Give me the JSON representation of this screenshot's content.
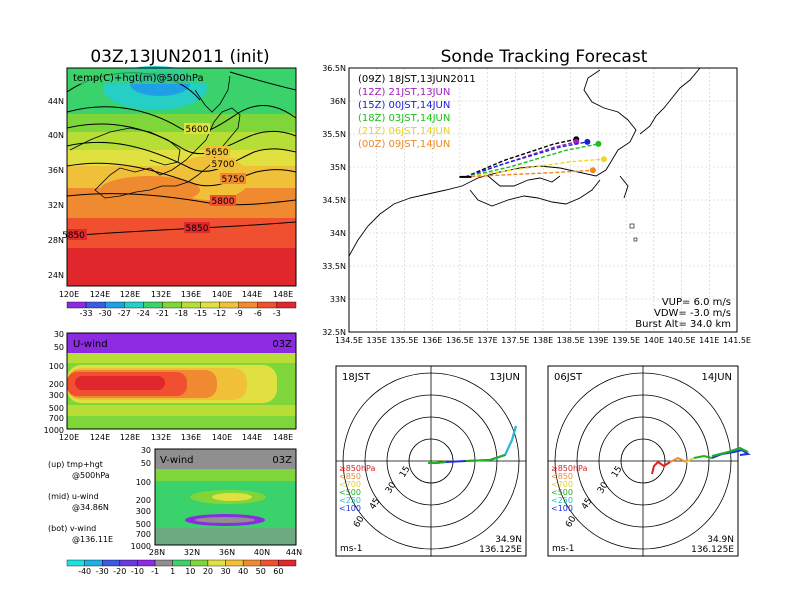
{
  "chart_data": [
    {
      "type": "heatmap",
      "title": "03Z,13JUN2011 (init)",
      "panel_label": "temp(C)+hgt(m)@500hPa",
      "x_ticks": [
        "120E",
        "124E",
        "128E",
        "132E",
        "136E",
        "140E",
        "144E",
        "148E"
      ],
      "y_ticks": [
        "24N",
        "28N",
        "32N",
        "36N",
        "40N",
        "44N"
      ],
      "contours": [
        "5600",
        "5650",
        "5700",
        "5750",
        "5800",
        "5850",
        "5850"
      ],
      "colorbar": {
        "labels": [
          "-33",
          "-30",
          "-27",
          "-24",
          "-21",
          "-18",
          "-15",
          "-12",
          "-9",
          "-6",
          "-3"
        ],
        "colors": [
          "#8c2be2",
          "#3c5ae6",
          "#1fa0e6",
          "#25cfc6",
          "#3ad26a",
          "#7fd63a",
          "#b6de36",
          "#e0e040",
          "#f0c038",
          "#f08a30",
          "#f05030",
          "#e0282c"
        ]
      }
    },
    {
      "type": "heatmap",
      "panel_label": "U-wind",
      "time_label": "03Z",
      "x_ticks": [
        "120E",
        "124E",
        "128E",
        "132E",
        "136E",
        "140E",
        "144E",
        "148E"
      ],
      "y_ticks": [
        "30",
        "50",
        "100",
        "200",
        "300",
        "500",
        "700",
        "1000"
      ]
    },
    {
      "type": "heatmap",
      "panel_label": "V-wind",
      "time_label": "03Z",
      "x_ticks": [
        "28N",
        "32N",
        "36N",
        "40N",
        "44N"
      ],
      "y_ticks": [
        "30",
        "50",
        "100",
        "200",
        "300",
        "500",
        "700",
        "1000"
      ],
      "colorbar": {
        "labels": [
          "-40",
          "-30",
          "-20",
          "-10",
          "-1",
          "1",
          "10",
          "20",
          "30",
          "40",
          "50",
          "60"
        ],
        "colors": [
          "#1fe0e0",
          "#1fb0e6",
          "#3c5ae6",
          "#6a3ad8",
          "#8c2be2",
          "#8f8f8f",
          "#3ad26a",
          "#7fd63a",
          "#e0e040",
          "#f0c038",
          "#f08a30",
          "#f05030",
          "#e0282c"
        ]
      }
    },
    {
      "type": "line",
      "title": "Sonde Tracking Forecast",
      "x_ticks": [
        "134.5E",
        "135E",
        "135.5E",
        "136E",
        "136.5E",
        "137E",
        "137.5E",
        "138E",
        "138.5E",
        "139E",
        "139.5E",
        "140E",
        "140.5E",
        "141E",
        "141.5E"
      ],
      "y_ticks": [
        "32.5N",
        "33N",
        "33.5N",
        "34N",
        "34.5N",
        "35N",
        "35.5N",
        "36N",
        "36.5N"
      ],
      "xlim": [
        134.5,
        141.5
      ],
      "ylim": [
        32.5,
        36.5
      ],
      "series": [
        {
          "name": "(09Z)  18JST,13JUN2011",
          "color": "#000000",
          "x": [
            136.6,
            137.3,
            138.2,
            138.6
          ],
          "y": [
            34.85,
            35.1,
            35.35,
            35.42
          ]
        },
        {
          "name": "(12Z)  21JST,13JUN",
          "color": "#a020c0",
          "x": [
            136.6,
            137.3,
            138.2,
            138.6
          ],
          "y": [
            34.85,
            35.05,
            35.3,
            35.38
          ]
        },
        {
          "name": "(15Z)  00JST,14JUN",
          "color": "#1c1ce0",
          "x": [
            136.6,
            137.3,
            138.3,
            138.8
          ],
          "y": [
            34.85,
            35.05,
            35.3,
            35.38
          ]
        },
        {
          "name": "(18Z)  03JST,14JUN",
          "color": "#18c018",
          "x": [
            136.6,
            137.4,
            138.4,
            139.0
          ],
          "y": [
            34.85,
            35.0,
            35.25,
            35.35
          ]
        },
        {
          "name": "(21Z)  06JST,14JUN",
          "color": "#f0d820",
          "x": [
            136.6,
            137.4,
            138.5,
            139.1
          ],
          "y": [
            34.85,
            34.95,
            35.08,
            35.12
          ]
        },
        {
          "name": "(00Z)  09JST,14JUN",
          "color": "#f08820",
          "x": [
            136.6,
            137.3,
            138.3,
            138.9
          ],
          "y": [
            34.85,
            34.88,
            34.92,
            34.95
          ]
        }
      ],
      "annotations": [
        "VUP=  6.0  m/s",
        "VDW=  -3.0  m/s",
        "Burst Alt=  34.0  km"
      ]
    },
    {
      "type": "line",
      "panel": "hodograph",
      "left_label": "18JST",
      "right_label": "13JUN",
      "rings": [
        "15",
        "30",
        "45",
        "60"
      ],
      "legend": [
        {
          "label": "≥850hPa",
          "color": "#e02020"
        },
        {
          "label": "<850",
          "color": "#f08a30"
        },
        {
          "label": "<700",
          "color": "#e0d030"
        },
        {
          "label": "<500",
          "color": "#20b020"
        },
        {
          "label": "<250",
          "color": "#20c0d0"
        },
        {
          "label": "<100",
          "color": "#2030e0"
        }
      ],
      "units": "ms-1",
      "location": [
        "34.9N",
        "136.125E"
      ]
    },
    {
      "type": "line",
      "panel": "hodograph",
      "left_label": "06JST",
      "right_label": "14JUN",
      "rings": [
        "15",
        "30",
        "45",
        "60"
      ],
      "legend": [
        {
          "label": "≥850hPa",
          "color": "#e02020"
        },
        {
          "label": "<850",
          "color": "#f08a30"
        },
        {
          "label": "<700",
          "color": "#e0d030"
        },
        {
          "label": "<500",
          "color": "#20b020"
        },
        {
          "label": "<250",
          "color": "#20c0d0"
        },
        {
          "label": "<100",
          "color": "#2030e0"
        }
      ],
      "units": "ms-1",
      "location": [
        "34.9N",
        "136.125E"
      ]
    }
  ],
  "notes": [
    {
      "line1": "(up) tmp+hgt",
      "line2": "@500hPa"
    },
    {
      "line1": "(mid) u-wind",
      "line2": "@34.86N"
    },
    {
      "line1": "(bot) v-wind",
      "line2": "@136.11E"
    }
  ]
}
